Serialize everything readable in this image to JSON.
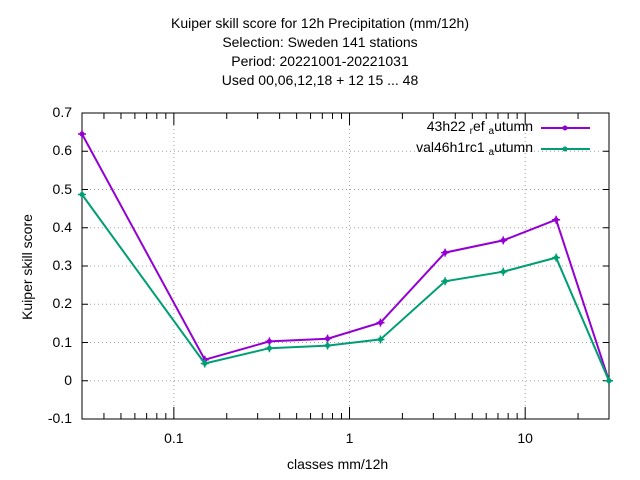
{
  "chart_data": {
    "type": "line",
    "title_lines": [
      "Kuiper skill score  for 12h Precipitation (mm/12h)",
      "Selection: Sweden    141 stations",
      "Period: 20221001-20221031",
      "Used  00,06,12,18 + 12 15 ... 48"
    ],
    "xlabel": "classes mm/12h",
    "ylabel": "Kuiper skill score",
    "x_scale": "log",
    "xlim": [
      0.03,
      30
    ],
    "ylim": [
      -0.1,
      0.7
    ],
    "x_ticks": [
      0.1,
      1,
      10
    ],
    "x_tick_labels": [
      "0.1",
      "1",
      "10"
    ],
    "y_ticks": [
      -0.1,
      0,
      0.1,
      0.2,
      0.3,
      0.4,
      0.5,
      0.6,
      0.7
    ],
    "y_tick_labels": [
      "-0.1",
      "0",
      "0.1",
      "0.2",
      "0.3",
      "0.4",
      "0.5",
      "0.6",
      "0.7"
    ],
    "grid": true,
    "legend_position": "top-right",
    "x": [
      0.03,
      0.15,
      0.35,
      0.75,
      1.5,
      3.5,
      7.5,
      15,
      30
    ],
    "series": [
      {
        "name_main": "43h22",
        "name_sub1": "r",
        "name_mid": "ef",
        "name_sub2": "a",
        "name_end": "utumn",
        "color": "#9400d3",
        "values": [
          0.645,
          0.055,
          0.103,
          0.11,
          0.152,
          0.335,
          0.367,
          0.421,
          0.0
        ]
      },
      {
        "name_main": "val46h1rc1",
        "name_sub2": "a",
        "name_end": "utumn",
        "color": "#009e73",
        "values": [
          0.487,
          0.045,
          0.085,
          0.092,
          0.108,
          0.26,
          0.285,
          0.322,
          0.0
        ]
      }
    ]
  }
}
